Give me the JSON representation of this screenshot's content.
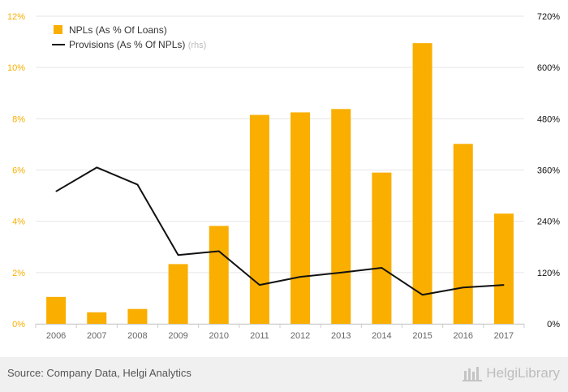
{
  "chart_data": {
    "type": "bar",
    "categories": [
      "2006",
      "2007",
      "2008",
      "2009",
      "2010",
      "2011",
      "2012",
      "2013",
      "2014",
      "2015",
      "2016",
      "2017"
    ],
    "series": [
      {
        "name": "NPLs (As % Of Loans)",
        "type": "bar",
        "axis": "left",
        "color": "#f9ae00",
        "values": [
          1.05,
          0.45,
          0.58,
          2.33,
          3.82,
          8.15,
          8.25,
          8.38,
          5.9,
          10.95,
          7.02,
          4.3
        ]
      },
      {
        "name": "Provisions (As % Of NPLs)",
        "type": "line",
        "axis": "right",
        "color": "#111111",
        "values": [
          310,
          366,
          326,
          161,
          170,
          91,
          110,
          120,
          131,
          68,
          85,
          91
        ]
      }
    ],
    "legend_suffix": "(rhs)",
    "legend_position": "top-left",
    "y_left": {
      "min": 0,
      "max": 12,
      "ticks": [
        "0%",
        "2%",
        "4%",
        "6%",
        "8%",
        "10%",
        "12%"
      ],
      "color": "#f9ae00"
    },
    "y_right": {
      "min": 0,
      "max": 720,
      "ticks": [
        "0%",
        "120%",
        "240%",
        "360%",
        "480%",
        "600%",
        "720%"
      ],
      "color": "#111111"
    },
    "grid": true
  },
  "footer": {
    "source": "Source: Company Data, Helgi Analytics",
    "brand": "HelgiLibrary"
  }
}
